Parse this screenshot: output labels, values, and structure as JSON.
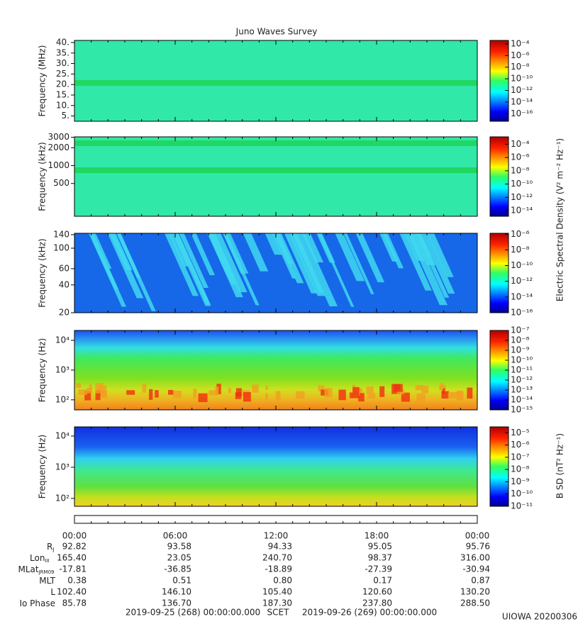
{
  "chart_data": [
    {
      "type": "spectrogram",
      "title": "Juno Waves Survey",
      "ylabel": "Frequency (MHz)",
      "yscale": "linear",
      "ylim": [
        2.5,
        41
      ],
      "yticks": [
        {
          "value": 5,
          "label": "5."
        },
        {
          "value": 10,
          "label": "10."
        },
        {
          "value": 15,
          "label": "15."
        },
        {
          "value": 20,
          "label": "20."
        },
        {
          "value": 25,
          "label": "25."
        },
        {
          "value": 30,
          "label": "30."
        },
        {
          "value": 35,
          "label": "35."
        },
        {
          "value": 40,
          "label": "40."
        }
      ],
      "clim": [
        5e-18,
        0.0004
      ],
      "cticks": [
        {
          "value": 0.0001,
          "label": "10⁻⁴"
        },
        {
          "value": 1e-06,
          "label": "10⁻⁶"
        },
        {
          "value": 1e-08,
          "label": "10⁻⁸"
        },
        {
          "value": 1e-10,
          "label": "10⁻¹⁰"
        },
        {
          "value": 1e-12,
          "label": "10⁻¹²"
        },
        {
          "value": 1e-14,
          "label": "10⁻¹⁴"
        },
        {
          "value": 1e-16,
          "label": "10⁻¹⁶"
        }
      ]
    },
    {
      "type": "spectrogram",
      "ylabel": "Frequency (kHz)",
      "yscale": "log",
      "ylim": [
        140,
        3050
      ],
      "yticks": [
        500,
        1000,
        2000,
        3000
      ],
      "clim": [
        1.4e-15,
        0.0013
      ],
      "cticks": [
        {
          "value": 0.0001,
          "label": "10⁻⁴"
        },
        {
          "value": 1e-06,
          "label": "10⁻⁶"
        },
        {
          "value": 1e-08,
          "label": "10⁻⁸"
        },
        {
          "value": 1e-10,
          "label": "10⁻¹⁰"
        },
        {
          "value": 1e-12,
          "label": "10⁻¹²"
        },
        {
          "value": 1e-14,
          "label": "10⁻¹⁴"
        }
      ],
      "clabel": "Electric Spectral Density (V² m⁻² Hz⁻¹)"
    },
    {
      "type": "spectrogram",
      "ylabel": "Frequency (kHz)",
      "yscale": "log",
      "ylim": [
        20,
        145
      ],
      "yticks": [
        20,
        40,
        60,
        100,
        140
      ],
      "clim": [
        1e-16,
        1.3e-06
      ],
      "cticks": [
        {
          "value": 1e-06,
          "label": "10⁻⁶"
        },
        {
          "value": 1e-08,
          "label": "10⁻⁸"
        },
        {
          "value": 1e-10,
          "label": "10⁻¹⁰"
        },
        {
          "value": 1e-12,
          "label": "10⁻¹²"
        },
        {
          "value": 1e-14,
          "label": "10⁻¹⁴"
        },
        {
          "value": 1e-16,
          "label": "10⁻¹⁶"
        }
      ]
    },
    {
      "type": "spectrogram",
      "ylabel": "Frequency (Hz)",
      "yscale": "log",
      "ylim": [
        46,
        21500
      ],
      "yticks": [
        {
          "value": 100,
          "label": "10²"
        },
        {
          "value": 1000,
          "label": "10³"
        },
        {
          "value": 10000,
          "label": "10⁴"
        }
      ],
      "clim": [
        1e-15,
        1e-07
      ],
      "cticks": [
        {
          "value": 1e-07,
          "label": "10⁻⁷"
        },
        {
          "value": 1e-08,
          "label": "10⁻⁸"
        },
        {
          "value": 1e-09,
          "label": "10⁻⁹"
        },
        {
          "value": 1e-10,
          "label": "10⁻¹⁰"
        },
        {
          "value": 1e-11,
          "label": "10⁻¹¹"
        },
        {
          "value": 1e-12,
          "label": "10⁻¹²"
        },
        {
          "value": 1e-13,
          "label": "10⁻¹³"
        },
        {
          "value": 1e-14,
          "label": "10⁻¹⁴"
        },
        {
          "value": 1e-15,
          "label": "10⁻¹⁵"
        }
      ]
    },
    {
      "type": "spectrogram",
      "ylabel": "Frequency (Hz)",
      "yscale": "log",
      "ylim": [
        56,
        19700
      ],
      "yticks": [
        {
          "value": 100,
          "label": "10²"
        },
        {
          "value": 1000,
          "label": "10³"
        },
        {
          "value": 10000,
          "label": "10⁴"
        }
      ],
      "clim": [
        1e-11,
        3e-05
      ],
      "cticks": [
        {
          "value": 1e-05,
          "label": "10⁻⁵"
        },
        {
          "value": 1e-06,
          "label": "10⁻⁶"
        },
        {
          "value": 1e-07,
          "label": "10⁻⁷"
        },
        {
          "value": 1e-08,
          "label": "10⁻⁸"
        },
        {
          "value": 1e-09,
          "label": "10⁻⁹"
        },
        {
          "value": 1e-10,
          "label": "10⁻¹⁰"
        },
        {
          "value": 1e-11,
          "label": "10⁻¹¹"
        }
      ],
      "clabel": "B SD (nT² Hz⁻¹)"
    }
  ],
  "ephemeris": {
    "times": [
      "00:00",
      "06:00",
      "12:00",
      "18:00",
      "00:00"
    ],
    "rows": [
      {
        "label": "R",
        "sub": "J",
        "values": [
          "92.82",
          "93.58",
          "94.33",
          "95.05",
          "95.76"
        ]
      },
      {
        "label": "Lon",
        "sub": "III",
        "values": [
          "165.40",
          "23.05",
          "240.70",
          "98.37",
          "316.00"
        ]
      },
      {
        "label": "MLat",
        "sub": "JRM09",
        "values": [
          "-17.81",
          "-36.85",
          "-18.89",
          "-27.39",
          "-30.94"
        ]
      },
      {
        "label": "MLT",
        "values": [
          "0.38",
          "0.51",
          "0.80",
          "0.17",
          "0.87"
        ]
      },
      {
        "label": "L",
        "values": [
          "102.40",
          "146.10",
          "105.40",
          "120.60",
          "130.20"
        ]
      },
      {
        "label": "Io Phase",
        "values": [
          "85.78",
          "136.70",
          "187.30",
          "237.80",
          "288.50"
        ]
      }
    ]
  },
  "footer": {
    "start": "2019-09-25 (268) 00:00:00.000",
    "scet": "SCET",
    "end": "2019-09-26 (269) 00:00:00.000",
    "stamp": "UIOWA 20200306"
  }
}
